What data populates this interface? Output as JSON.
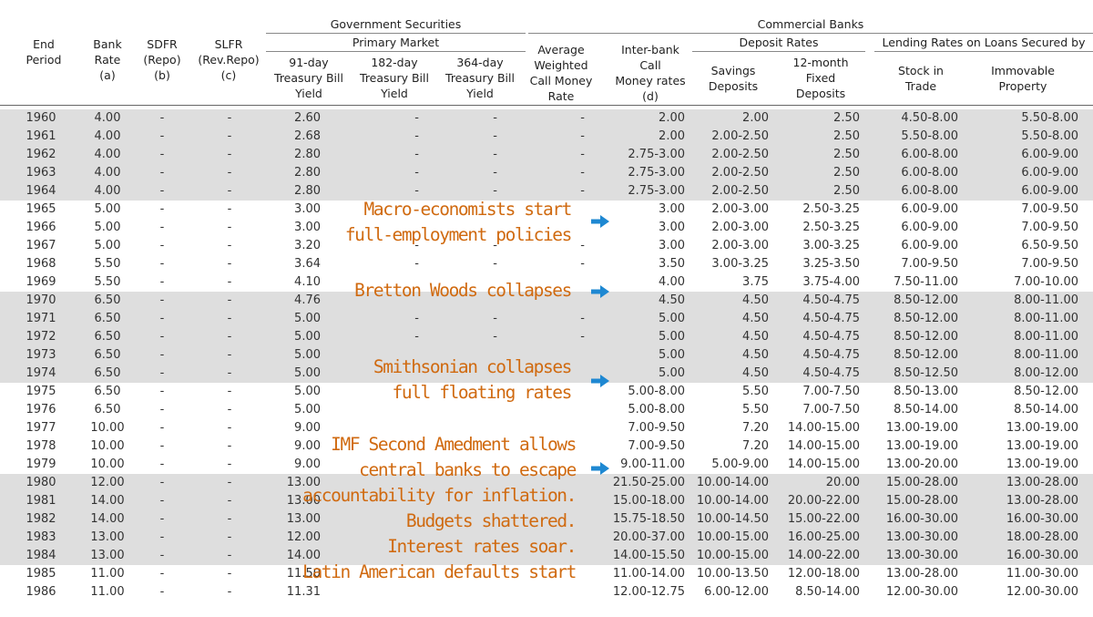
{
  "header": {
    "gov_securities": "Government Securities",
    "primary_market": "Primary Market",
    "commercial_banks": "Commercial Banks",
    "deposit_rates": "Deposit Rates",
    "lending_rates": "Lending Rates on Loans Secured by",
    "end_period_1": "End",
    "end_period_2": "Period",
    "bank_rate_1": "Bank",
    "bank_rate_2": "Rate",
    "bank_rate_3": "(a)",
    "sdfr_1": "SDFR",
    "sdfr_2": "(Repo)",
    "sdfr_3": "(b)",
    "slfr_1": "SLFR",
    "slfr_2": "(Rev.Repo)",
    "slfr_3": "(c)",
    "tb91_1": "91-day",
    "tb91_2": "Treasury Bill",
    "tb91_3": "Yield",
    "tb182_1": "182-day",
    "tb182_2": "Treasury Bill",
    "tb182_3": "Yield",
    "tb364_1": "364-day",
    "tb364_2": "Treasury Bill",
    "tb364_3": "Yield",
    "awcmr_1": "Average",
    "awcmr_2": "Weighted",
    "awcmr_3": "Call Money",
    "awcmr_4": "Rate",
    "ibc_1": "Inter-bank",
    "ibc_2": "Call",
    "ibc_3": "Money rates",
    "ibc_4": "(d)",
    "sav_1": "Savings",
    "sav_2": "Deposits",
    "fd_1": "12-month",
    "fd_2": "Fixed",
    "fd_3": "Deposits",
    "stock_1": "Stock in",
    "stock_2": "Trade",
    "immov_1": "Immovable",
    "immov_2": "Property"
  },
  "rows": [
    {
      "year": "1960",
      "bank": "4.00",
      "sdfr": "-",
      "slfr": "-",
      "tb91": "2.60",
      "tb182": "-",
      "tb364": "-",
      "awcmr": "-",
      "ibc": "2.00",
      "sav": "2.00",
      "fd": "2.50",
      "stock": "4.50-8.00",
      "immov": "5.50-8.00",
      "shaded": true
    },
    {
      "year": "1961",
      "bank": "4.00",
      "sdfr": "-",
      "slfr": "-",
      "tb91": "2.68",
      "tb182": "-",
      "tb364": "-",
      "awcmr": "-",
      "ibc": "2.00",
      "sav": "2.00-2.50",
      "fd": "2.50",
      "stock": "5.50-8.00",
      "immov": "5.50-8.00",
      "shaded": true
    },
    {
      "year": "1962",
      "bank": "4.00",
      "sdfr": "-",
      "slfr": "-",
      "tb91": "2.80",
      "tb182": "-",
      "tb364": "-",
      "awcmr": "-",
      "ibc": "2.75-3.00",
      "sav": "2.00-2.50",
      "fd": "2.50",
      "stock": "6.00-8.00",
      "immov": "6.00-9.00",
      "shaded": true
    },
    {
      "year": "1963",
      "bank": "4.00",
      "sdfr": "-",
      "slfr": "-",
      "tb91": "2.80",
      "tb182": "-",
      "tb364": "-",
      "awcmr": "-",
      "ibc": "2.75-3.00",
      "sav": "2.00-2.50",
      "fd": "2.50",
      "stock": "6.00-8.00",
      "immov": "6.00-9.00",
      "shaded": true
    },
    {
      "year": "1964",
      "bank": "4.00",
      "sdfr": "-",
      "slfr": "-",
      "tb91": "2.80",
      "tb182": "-",
      "tb364": "-",
      "awcmr": "-",
      "ibc": "2.75-3.00",
      "sav": "2.00-2.50",
      "fd": "2.50",
      "stock": "6.00-8.00",
      "immov": "6.00-9.00",
      "shaded": true
    },
    {
      "year": "1965",
      "bank": "5.00",
      "sdfr": "-",
      "slfr": "-",
      "tb91": "3.00",
      "tb182": "",
      "tb364": "",
      "awcmr": "",
      "ibc": "3.00",
      "sav": "2.00-3.00",
      "fd": "2.50-3.25",
      "stock": "6.00-9.00",
      "immov": "7.00-9.50",
      "shaded": false
    },
    {
      "year": "1966",
      "bank": "5.00",
      "sdfr": "-",
      "slfr": "-",
      "tb91": "3.00",
      "tb182": "",
      "tb364": "",
      "awcmr": "",
      "ibc": "3.00",
      "sav": "2.00-3.00",
      "fd": "2.50-3.25",
      "stock": "6.00-9.00",
      "immov": "7.00-9.50",
      "shaded": false
    },
    {
      "year": "1967",
      "bank": "5.00",
      "sdfr": "-",
      "slfr": "-",
      "tb91": "3.20",
      "tb182": "-",
      "tb364": "-",
      "awcmr": "-",
      "ibc": "3.00",
      "sav": "2.00-3.00",
      "fd": "3.00-3.25",
      "stock": "6.00-9.00",
      "immov": "6.50-9.50",
      "shaded": false
    },
    {
      "year": "1968",
      "bank": "5.50",
      "sdfr": "-",
      "slfr": "-",
      "tb91": "3.64",
      "tb182": "-",
      "tb364": "-",
      "awcmr": "-",
      "ibc": "3.50",
      "sav": "3.00-3.25",
      "fd": "3.25-3.50",
      "stock": "7.00-9.50",
      "immov": "7.00-9.50",
      "shaded": false
    },
    {
      "year": "1969",
      "bank": "5.50",
      "sdfr": "-",
      "slfr": "-",
      "tb91": "4.10",
      "tb182": "",
      "tb364": "",
      "awcmr": "",
      "ibc": "4.00",
      "sav": "3.75",
      "fd": "3.75-4.00",
      "stock": "7.50-11.00",
      "immov": "7.00-10.00",
      "shaded": false
    },
    {
      "year": "1970",
      "bank": "6.50",
      "sdfr": "-",
      "slfr": "-",
      "tb91": "4.76",
      "tb182": "",
      "tb364": "",
      "awcmr": "",
      "ibc": "4.50",
      "sav": "4.50",
      "fd": "4.50-4.75",
      "stock": "8.50-12.00",
      "immov": "8.00-11.00",
      "shaded": true
    },
    {
      "year": "1971",
      "bank": "6.50",
      "sdfr": "-",
      "slfr": "-",
      "tb91": "5.00",
      "tb182": "-",
      "tb364": "-",
      "awcmr": "-",
      "ibc": "5.00",
      "sav": "4.50",
      "fd": "4.50-4.75",
      "stock": "8.50-12.00",
      "immov": "8.00-11.00",
      "shaded": true
    },
    {
      "year": "1972",
      "bank": "6.50",
      "sdfr": "-",
      "slfr": "-",
      "tb91": "5.00",
      "tb182": "-",
      "tb364": "-",
      "awcmr": "-",
      "ibc": "5.00",
      "sav": "4.50",
      "fd": "4.50-4.75",
      "stock": "8.50-12.00",
      "immov": "8.00-11.00",
      "shaded": true
    },
    {
      "year": "1973",
      "bank": "6.50",
      "sdfr": "-",
      "slfr": "-",
      "tb91": "5.00",
      "tb182": "",
      "tb364": "",
      "awcmr": "",
      "ibc": "5.00",
      "sav": "4.50",
      "fd": "4.50-4.75",
      "stock": "8.50-12.00",
      "immov": "8.00-11.00",
      "shaded": true
    },
    {
      "year": "1974",
      "bank": "6.50",
      "sdfr": "-",
      "slfr": "-",
      "tb91": "5.00",
      "tb182": "",
      "tb364": "",
      "awcmr": "",
      "ibc": "5.00",
      "sav": "4.50",
      "fd": "4.50-4.75",
      "stock": "8.50-12.50",
      "immov": "8.00-12.00",
      "shaded": true
    },
    {
      "year": "1975",
      "bank": "6.50",
      "sdfr": "-",
      "slfr": "-",
      "tb91": "5.00",
      "tb182": "",
      "tb364": "",
      "awcmr": "",
      "ibc": "5.00-8.00",
      "sav": "5.50",
      "fd": "7.00-7.50",
      "stock": "8.50-13.00",
      "immov": "8.50-12.00",
      "shaded": false
    },
    {
      "year": "1976",
      "bank": "6.50",
      "sdfr": "-",
      "slfr": "-",
      "tb91": "5.00",
      "tb182": "",
      "tb364": "",
      "awcmr": "",
      "ibc": "5.00-8.00",
      "sav": "5.50",
      "fd": "7.00-7.50",
      "stock": "8.50-14.00",
      "immov": "8.50-14.00",
      "shaded": false
    },
    {
      "year": "1977",
      "bank": "10.00",
      "sdfr": "-",
      "slfr": "-",
      "tb91": "9.00",
      "tb182": "",
      "tb364": "",
      "awcmr": "",
      "ibc": "7.00-9.50",
      "sav": "7.20",
      "fd": "14.00-15.00",
      "stock": "13.00-19.00",
      "immov": "13.00-19.00",
      "shaded": false
    },
    {
      "year": "1978",
      "bank": "10.00",
      "sdfr": "-",
      "slfr": "-",
      "tb91": "9.00",
      "tb182": "",
      "tb364": "",
      "awcmr": "",
      "ibc": "7.00-9.50",
      "sav": "7.20",
      "fd": "14.00-15.00",
      "stock": "13.00-19.00",
      "immov": "13.00-19.00",
      "shaded": false
    },
    {
      "year": "1979",
      "bank": "10.00",
      "sdfr": "-",
      "slfr": "-",
      "tb91": "9.00",
      "tb182": "",
      "tb364": "",
      "awcmr": "",
      "ibc": "9.00-11.00",
      "sav": "5.00-9.00",
      "fd": "14.00-15.00",
      "stock": "13.00-20.00",
      "immov": "13.00-19.00",
      "shaded": false
    },
    {
      "year": "1980",
      "bank": "12.00",
      "sdfr": "-",
      "slfr": "-",
      "tb91": "13.00",
      "tb182": "",
      "tb364": "",
      "awcmr": "",
      "ibc": "21.50-25.00",
      "sav": "10.00-14.00",
      "fd": "20.00",
      "stock": "15.00-28.00",
      "immov": "13.00-28.00",
      "shaded": true
    },
    {
      "year": "1981",
      "bank": "14.00",
      "sdfr": "-",
      "slfr": "-",
      "tb91": "13.00",
      "tb182": "",
      "tb364": "",
      "awcmr": "",
      "ibc": "15.00-18.00",
      "sav": "10.00-14.00",
      "fd": "20.00-22.00",
      "stock": "15.00-28.00",
      "immov": "13.00-28.00",
      "shaded": true
    },
    {
      "year": "1982",
      "bank": "14.00",
      "sdfr": "-",
      "slfr": "-",
      "tb91": "13.00",
      "tb182": "",
      "tb364": "",
      "awcmr": "",
      "ibc": "15.75-18.50",
      "sav": "10.00-14.50",
      "fd": "15.00-22.00",
      "stock": "16.00-30.00",
      "immov": "16.00-30.00",
      "shaded": true
    },
    {
      "year": "1983",
      "bank": "13.00",
      "sdfr": "-",
      "slfr": "-",
      "tb91": "12.00",
      "tb182": "",
      "tb364": "",
      "awcmr": "",
      "ibc": "20.00-37.00",
      "sav": "10.00-15.00",
      "fd": "16.00-25.00",
      "stock": "13.00-30.00",
      "immov": "18.00-28.00",
      "shaded": true
    },
    {
      "year": "1984",
      "bank": "13.00",
      "sdfr": "-",
      "slfr": "-",
      "tb91": "14.00",
      "tb182": "",
      "tb364": "",
      "awcmr": "",
      "ibc": "14.00-15.50",
      "sav": "10.00-15.00",
      "fd": "14.00-22.00",
      "stock": "13.00-30.00",
      "immov": "16.00-30.00",
      "shaded": true
    },
    {
      "year": "1985",
      "bank": "11.00",
      "sdfr": "-",
      "slfr": "-",
      "tb91": "11.50",
      "tb182": "",
      "tb364": "",
      "awcmr": "",
      "ibc": "11.00-14.00",
      "sav": "10.00-13.50",
      "fd": "12.00-18.00",
      "stock": "13.00-28.00",
      "immov": "11.00-30.00",
      "shaded": false
    },
    {
      "year": "1986",
      "bank": "11.00",
      "sdfr": "-",
      "slfr": "-",
      "tb91": "11.31",
      "tb182": "",
      "tb364": "",
      "awcmr": "",
      "ibc": "12.00-12.75",
      "sav": "6.00-12.00",
      "fd": "8.50-14.00",
      "stock": "12.00-30.00",
      "immov": "12.00-30.00",
      "shaded": false
    }
  ],
  "annotations": {
    "a1_l1": "Macro-economists start",
    "a1_l2": "full-employment policies",
    "a2_l1": "Bretton Woods collapses",
    "a3_l1": "Smithsonian collapses",
    "a3_l2": "full floating rates",
    "a4_l1": "IMF Second Amedment allows",
    "a4_l2": "central banks to escape",
    "a4_l3": "accountability for inflation.",
    "a4_l4": "Budgets shattered.",
    "a4_l5": "Interest rates soar.",
    "a4_l6": "Latin American defaults start"
  },
  "colors": {
    "shade": "#dedede",
    "annotation": "#d06a10",
    "arrow": "#1e88d2"
  },
  "icons": {
    "arrow": "arrow-right-icon"
  }
}
